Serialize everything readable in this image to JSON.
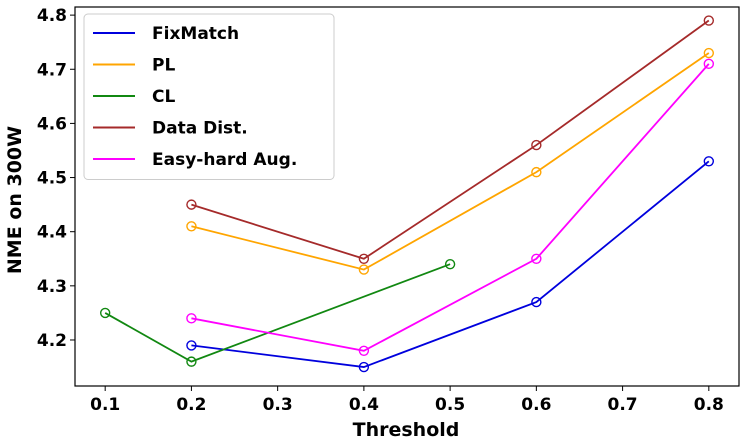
{
  "chart_data": {
    "type": "line",
    "title": "",
    "xlabel": "Threshold",
    "ylabel": "NME on 300W",
    "xlim": [
      0.065,
      0.835
    ],
    "ylim": [
      4.115,
      4.815
    ],
    "xticks": [
      "0.1",
      "0.2",
      "0.3",
      "0.4",
      "0.5",
      "0.6",
      "0.7",
      "0.8"
    ],
    "yticks": [
      "4.2",
      "4.3",
      "4.4",
      "4.5",
      "4.6",
      "4.7",
      "4.8"
    ],
    "grid": false,
    "legend_position": "top-left",
    "series": [
      {
        "name": "FixMatch",
        "color": "#0000dd",
        "x": [
          0.2,
          0.4,
          0.6,
          0.8
        ],
        "y": [
          4.19,
          4.15,
          4.27,
          4.53
        ]
      },
      {
        "name": "PL",
        "color": "#ffa500",
        "x": [
          0.2,
          0.4,
          0.6,
          0.8
        ],
        "y": [
          4.41,
          4.33,
          4.51,
          4.73
        ]
      },
      {
        "name": "CL",
        "color": "#118811",
        "x": [
          0.1,
          0.2,
          0.5
        ],
        "y": [
          4.25,
          4.16,
          4.34
        ]
      },
      {
        "name": "Data Dist.",
        "color": "#a52a2a",
        "x": [
          0.2,
          0.4,
          0.6,
          0.8
        ],
        "y": [
          4.45,
          4.35,
          4.56,
          4.79
        ]
      },
      {
        "name": "Easy-hard Aug.",
        "color": "#ff00ff",
        "x": [
          0.2,
          0.4,
          0.6,
          0.8
        ],
        "y": [
          4.24,
          4.18,
          4.35,
          4.71
        ]
      }
    ]
  }
}
